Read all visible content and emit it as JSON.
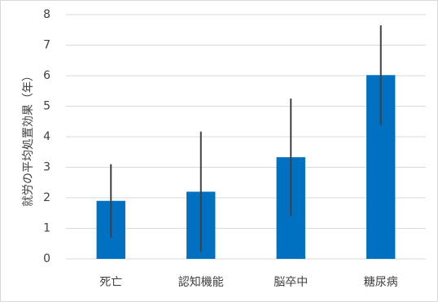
{
  "chart_data": {
    "type": "bar",
    "y_label": "就労の平均処置効果（年）",
    "categories": [
      "死亡",
      "認知機能",
      "脳卒中",
      "糖尿病"
    ],
    "values": [
      1.9,
      2.2,
      3.33,
      6.02
    ],
    "errors": [
      1.2,
      1.97,
      1.92,
      1.63
    ],
    "color": "#0070c0",
    "error_color": "#404040",
    "ylim": [
      0,
      8
    ],
    "yticks": [
      0,
      1,
      2,
      3,
      4,
      5,
      6,
      7,
      8
    ],
    "grid": true
  }
}
